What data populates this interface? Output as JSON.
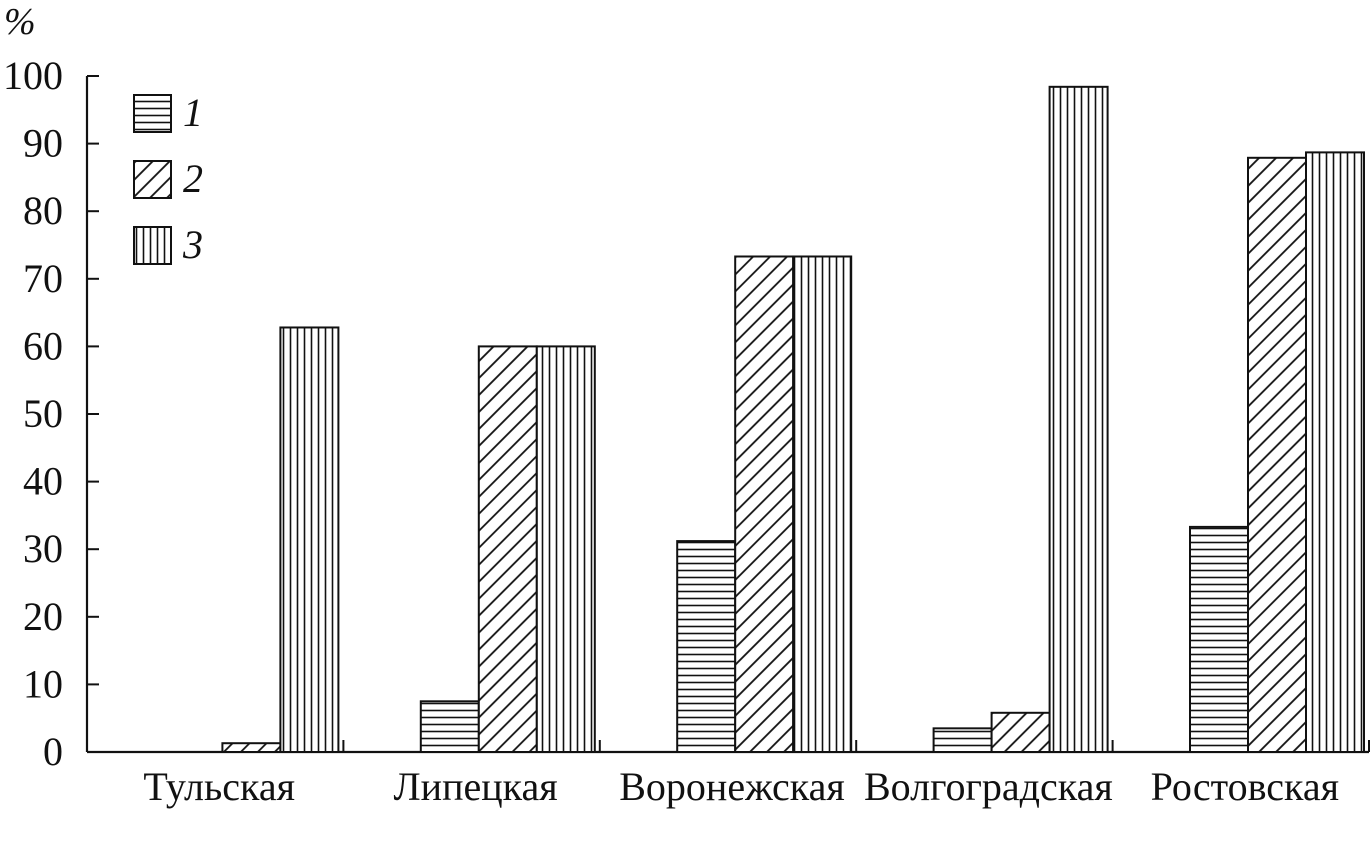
{
  "chart_data": {
    "type": "bar",
    "title": "",
    "xlabel": "",
    "ylabel": "%",
    "ylim": [
      0,
      100
    ],
    "yticks": [
      0,
      10,
      20,
      30,
      40,
      50,
      60,
      70,
      80,
      90,
      100
    ],
    "grid": false,
    "legend_position": "top-left",
    "categories": [
      "Тульская",
      "Липецкая",
      "Воронежская",
      "Волгоградская",
      "Ростовская"
    ],
    "series": [
      {
        "name": "1",
        "pattern": "horizontal-lines",
        "values": [
          0,
          7.5,
          31.2,
          3.5,
          33.3
        ]
      },
      {
        "name": "2",
        "pattern": "diagonal-lines",
        "values": [
          1.3,
          60.0,
          73.3,
          5.8,
          87.9
        ]
      },
      {
        "name": "3",
        "pattern": "vertical-lines",
        "values": [
          62.8,
          60.0,
          73.3,
          98.4,
          88.7
        ]
      }
    ],
    "colors": {
      "ink": "#111111",
      "background": "#ffffff"
    }
  }
}
